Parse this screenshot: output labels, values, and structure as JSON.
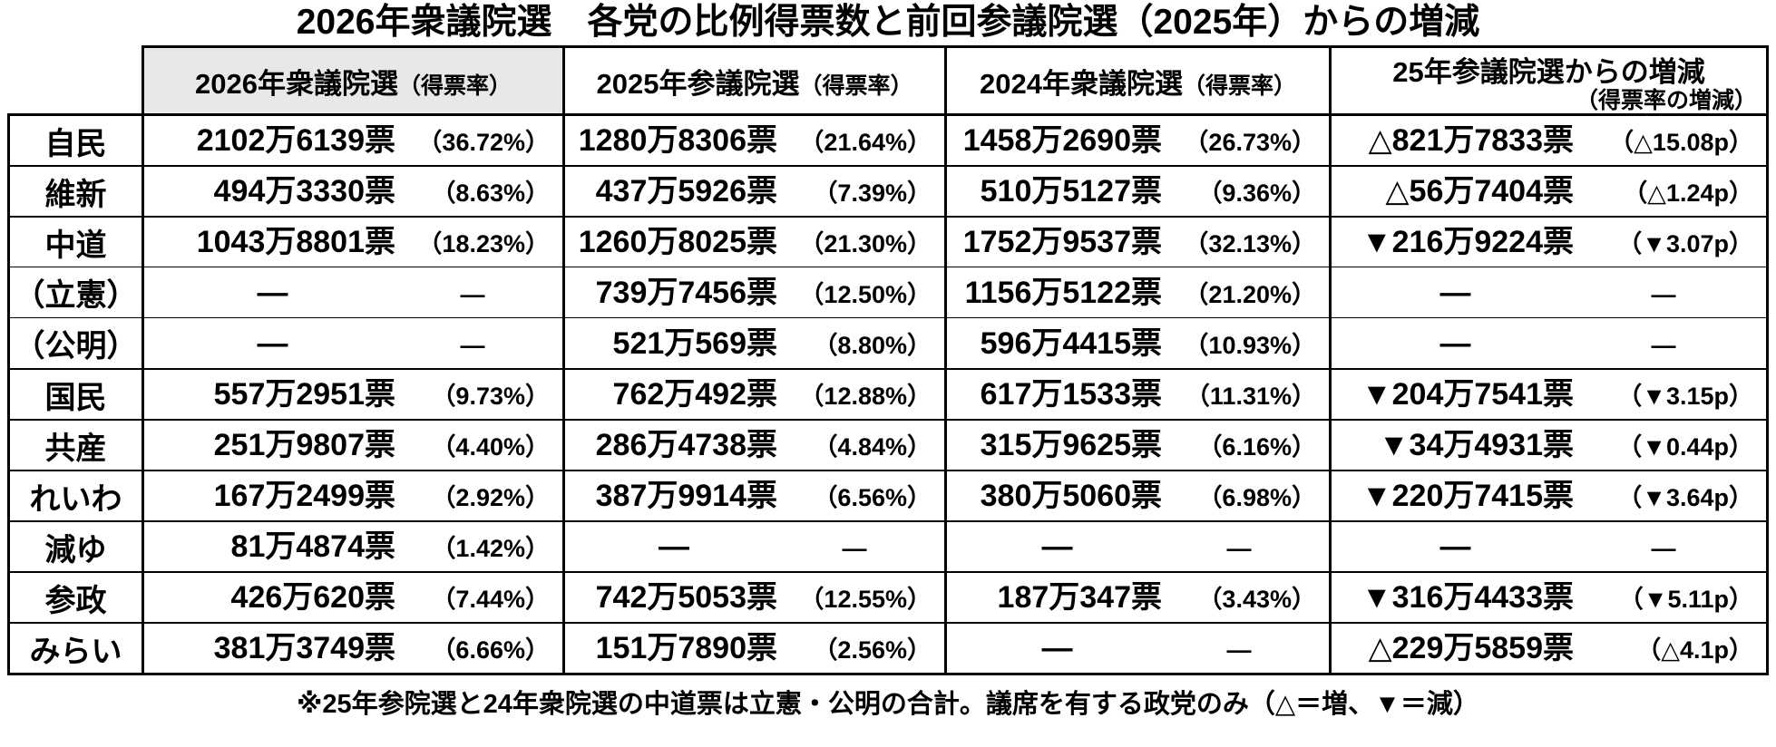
{
  "title": "2026年衆議院選　各党の比例得票数と前回参議院選（2025年）からの増減",
  "table": {
    "columns": [
      {
        "title": "2026年衆議院選",
        "sub": "（得票率）"
      },
      {
        "title": "2025年参議院選",
        "sub": "（得票率）"
      },
      {
        "title": "2024年衆議院選",
        "sub": "（得票率）"
      },
      {
        "title": "25年参議院選からの増減",
        "sub": "（得票率の増減）"
      }
    ],
    "rows": [
      {
        "party": "自民",
        "cells": [
          {
            "votes": "2102万6139票",
            "pct": "（36.72%）"
          },
          {
            "votes": "1280万8306票",
            "pct": "（21.64%）"
          },
          {
            "votes": "1458万2690票",
            "pct": "（26.73%）"
          },
          {
            "votes": "△821万7833票",
            "pct": "（△15.08p）"
          }
        ]
      },
      {
        "party": "維新",
        "cells": [
          {
            "votes": "494万3330票",
            "pct": "（8.63%）"
          },
          {
            "votes": "437万5926票",
            "pct": "（7.39%）"
          },
          {
            "votes": "510万5127票",
            "pct": "（9.36%）"
          },
          {
            "votes": "△56万7404票",
            "pct": "（△1.24p）"
          }
        ]
      },
      {
        "party": "中道",
        "cells": [
          {
            "votes": "1043万8801票",
            "pct": "（18.23%）"
          },
          {
            "votes": "1260万8025票",
            "pct": "（21.30%）"
          },
          {
            "votes": "1752万9537票",
            "pct": "（32.13%）"
          },
          {
            "votes": "▼216万9224票",
            "pct": "（▼3.07p）"
          }
        ]
      },
      {
        "party": "（立憲）",
        "subrow": true,
        "cells": [
          {
            "votes": "—",
            "pct": "—"
          },
          {
            "votes": "739万7456票",
            "pct": "（12.50%）"
          },
          {
            "votes": "1156万5122票",
            "pct": "（21.20%）"
          },
          {
            "votes": "—",
            "pct": "—"
          }
        ]
      },
      {
        "party": "（公明）",
        "subrow": true,
        "cells": [
          {
            "votes": "—",
            "pct": "—"
          },
          {
            "votes": "521万569票",
            "pct": "（8.80%）"
          },
          {
            "votes": "596万4415票",
            "pct": "（10.93%）"
          },
          {
            "votes": "—",
            "pct": "—"
          }
        ]
      },
      {
        "party": "国民",
        "cells": [
          {
            "votes": "557万2951票",
            "pct": "（9.73%）"
          },
          {
            "votes": "762万492票",
            "pct": "（12.88%）"
          },
          {
            "votes": "617万1533票",
            "pct": "（11.31%）"
          },
          {
            "votes": "▼204万7541票",
            "pct": "（▼3.15p）"
          }
        ]
      },
      {
        "party": "共産",
        "cells": [
          {
            "votes": "251万9807票",
            "pct": "（4.40%）"
          },
          {
            "votes": "286万4738票",
            "pct": "（4.84%）"
          },
          {
            "votes": "315万9625票",
            "pct": "（6.16%）"
          },
          {
            "votes": "▼34万4931票",
            "pct": "（▼0.44p）"
          }
        ]
      },
      {
        "party": "れいわ",
        "cells": [
          {
            "votes": "167万2499票",
            "pct": "（2.92%）"
          },
          {
            "votes": "387万9914票",
            "pct": "（6.56%）"
          },
          {
            "votes": "380万5060票",
            "pct": "（6.98%）"
          },
          {
            "votes": "▼220万7415票",
            "pct": "（▼3.64p）"
          }
        ]
      },
      {
        "party": "減ゆ",
        "cells": [
          {
            "votes": "81万4874票",
            "pct": "（1.42%）"
          },
          {
            "votes": "—",
            "pct": "—"
          },
          {
            "votes": "—",
            "pct": "—"
          },
          {
            "votes": "—",
            "pct": "—"
          }
        ]
      },
      {
        "party": "参政",
        "cells": [
          {
            "votes": "426万620票",
            "pct": "（7.44%）"
          },
          {
            "votes": "742万5053票",
            "pct": "（12.55%）"
          },
          {
            "votes": "187万347票",
            "pct": "（3.43%）"
          },
          {
            "votes": "▼316万4433票",
            "pct": "（▼5.11p）"
          }
        ]
      },
      {
        "party": "みらい",
        "cells": [
          {
            "votes": "381万3749票",
            "pct": "（6.66%）"
          },
          {
            "votes": "151万7890票",
            "pct": "（2.56%）"
          },
          {
            "votes": "—",
            "pct": "—"
          },
          {
            "votes": "△229万5859票",
            "pct": "（△4.1p）"
          }
        ]
      }
    ]
  },
  "footnote": "※25年参院選と24年衆院選の中道票は立憲・公明の合計。議席を有する政党のみ（△＝増、▼＝減）",
  "colors": {
    "background": "#ffffff",
    "text": "#000000",
    "border": "#000000",
    "header_highlight": "#e8e8e8"
  }
}
